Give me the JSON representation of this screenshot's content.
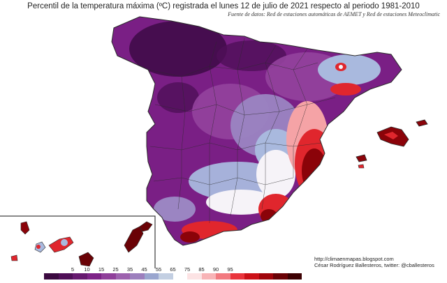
{
  "title": "Percentil de la temperatura máxima (ºC) registrada el lunes 12 de julio de 2021 respecto al periodo 1981-2010",
  "subtitle": "Fuente de datos: Red de estaciones automáticas de AEMET y Red de estaciones Meteoclimatic",
  "credits": {
    "line1": "http://climaenmapas.blogspot.com",
    "line2": "César Rodríguez Ballesteros, twitter: @cballesteros"
  },
  "legend": {
    "labels": [
      "5",
      "10",
      "15",
      "25",
      "35",
      "45",
      "55",
      "65",
      "75",
      "85",
      "90",
      "95"
    ],
    "colors": [
      "#3b0a40",
      "#4f0f57",
      "#66196f",
      "#7d2387",
      "#8f3f9a",
      "#9d62ae",
      "#9c7fbd",
      "#9aa6cf",
      "#c3cfe2",
      "#ffffff",
      "#fce3e4",
      "#f8b4b7",
      "#f27a80",
      "#e9353d",
      "#cc1118",
      "#a0050b",
      "#6a0206",
      "#3d0103"
    ]
  },
  "colors": {
    "deep_purple": "#3d0a45",
    "purple": "#7a1f85",
    "mid_purple": "#93439d",
    "lavender": "#9b85c2",
    "light_blue": "#a9b9de",
    "white": "#f6f3f8",
    "pink": "#f5a3a6",
    "red": "#e0262d",
    "dark_red": "#8b0309",
    "border": "#2a2a2a"
  }
}
